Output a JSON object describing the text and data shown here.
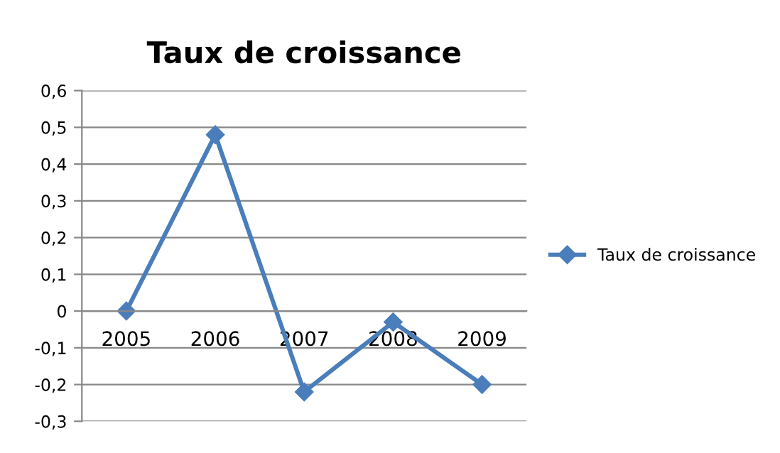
{
  "chart_data": {
    "type": "line",
    "title": "Taux de croissance",
    "categories": [
      "2005",
      "2006",
      "2007",
      "2008",
      "2009"
    ],
    "series": [
      {
        "name": "Taux de croissance",
        "color": "#4a7ebb",
        "values": [
          0,
          0.48,
          -0.22,
          -0.03,
          -0.2
        ]
      }
    ],
    "ylim": [
      -0.3,
      0.6
    ],
    "yticks": [
      {
        "value": -0.3,
        "label": "-0,3"
      },
      {
        "value": -0.2,
        "label": "-0,2"
      },
      {
        "value": -0.1,
        "label": "-0,1"
      },
      {
        "value": 0,
        "label": "0"
      },
      {
        "value": 0.1,
        "label": "0,1"
      },
      {
        "value": 0.2,
        "label": "0,2"
      },
      {
        "value": 0.3,
        "label": "0,3"
      },
      {
        "value": 0.4,
        "label": "0,4"
      },
      {
        "value": 0.5,
        "label": "0,5"
      },
      {
        "value": 0.6,
        "label": "0,6"
      }
    ],
    "grid": "y",
    "legend": "right",
    "marker": "diamond",
    "line_style": "solid"
  }
}
